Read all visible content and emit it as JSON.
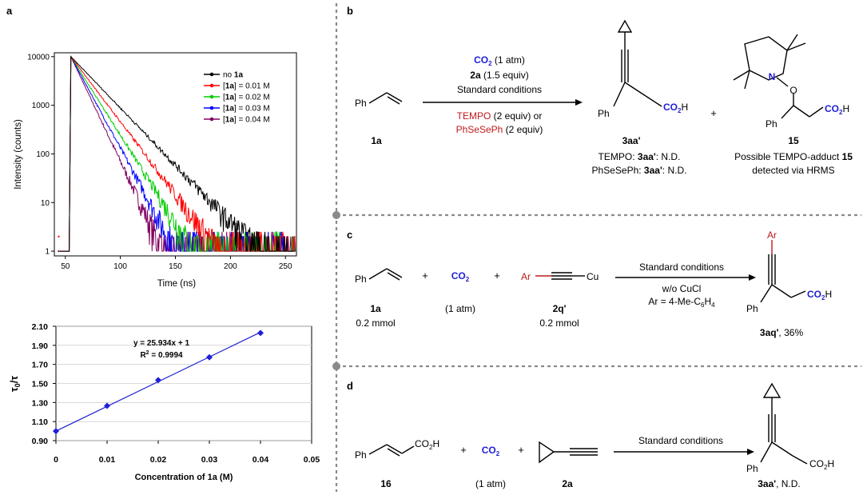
{
  "panels": {
    "a": "a",
    "b": "b",
    "c": "c",
    "d": "d"
  },
  "colors": {
    "blue": "#1f1fd6",
    "red": "#c0181c",
    "dash": "#8a8a8a"
  },
  "chart_data": [
    {
      "type": "line",
      "xlabel": "Time (ns)",
      "ylabel": "Intensity (counts)",
      "yscale": "log",
      "xlim": [
        40,
        260
      ],
      "ylim": [
        0.8,
        12000
      ],
      "xticks": [
        "50",
        "100",
        "150",
        "200",
        "250"
      ],
      "yticks": [
        "1",
        "10",
        "100",
        "1000",
        "10000"
      ],
      "legend_position": "top-right",
      "series": [
        {
          "name": "no 1a",
          "label_prefix": "no ",
          "label_bold": "1a",
          "label_suffix": "",
          "color": "#000000",
          "tau": 18.5
        },
        {
          "name": "[1a] = 0.01 M",
          "label_prefix": "[",
          "label_bold": "1a",
          "label_suffix": "] = 0.01 M",
          "color": "#ff0000",
          "tau": 14.6
        },
        {
          "name": "[1a] = 0.02 M",
          "label_prefix": "[",
          "label_bold": "1a",
          "label_suffix": "] = 0.02 M",
          "color": "#00cc00",
          "tau": 12.1
        },
        {
          "name": "[1a] = 0.03 M",
          "label_prefix": "[",
          "label_bold": "1a",
          "label_suffix": "] = 0.03 M",
          "color": "#0000ff",
          "tau": 10.4
        },
        {
          "name": "[1a] = 0.04 M",
          "label_prefix": "[",
          "label_bold": "1a",
          "label_suffix": "] = 0.04 M",
          "color": "#800060",
          "tau": 9.1
        }
      ],
      "peak_x": 55,
      "peak_y": 10000
    },
    {
      "type": "scatter",
      "xlabel": "Concentration of 1a (M)",
      "ylabel_main": "τ",
      "ylabel_sub": "0",
      "ylabel_rest": "/τ",
      "xlim": [
        0,
        0.05
      ],
      "ylim": [
        0.9,
        2.1
      ],
      "xticks": [
        "0",
        "0.01",
        "0.02",
        "0.03",
        "0.04",
        "0.05"
      ],
      "yticks": [
        "0.90",
        "1.10",
        "1.30",
        "1.50",
        "1.70",
        "1.90",
        "2.10"
      ],
      "equation": "y = 25.934x + 1",
      "r2_prefix": "R",
      "r2_sup": "2",
      "r2_suffix": " = 0.9994",
      "x": [
        0,
        0.01,
        0.02,
        0.03,
        0.04
      ],
      "y": [
        1.0,
        1.265,
        1.535,
        1.775,
        2.03
      ],
      "color": "#1f1fd6"
    }
  ],
  "b": {
    "reagent1_bold": "CO",
    "reagent1_sub": "2",
    "reagent1_rest": " (1 atm)",
    "reagent2_bold": "2a",
    "reagent2_rest": " (1.5 equiv)",
    "reagent3": "Standard conditions",
    "reagent4_red": "TEMPO",
    "reagent4_rest": "  (2 equiv) or",
    "reagent5_red": "PhSeSePh",
    "reagent5_rest": " (2 equiv)",
    "substrate_ph": "Ph",
    "substrate_label": "1a",
    "product1_ph": "Ph",
    "product1_co2": "CO",
    "product1_co2_sub": "2",
    "product1_co2_h": "H",
    "product1_label": "3aa'",
    "note1_prefix": "TEMPO: ",
    "note1_bold": "3aa'",
    "note1_suffix": ": N.D.",
    "note2_prefix": "PhSeSePh: ",
    "note2_bold": "3aa'",
    "note2_suffix": ": N.D.",
    "plus": "+",
    "product2_n": "N",
    "product2_o": "O",
    "product2_ph": "Ph",
    "product2_co2": "CO",
    "product2_co2_sub": "2",
    "product2_co2_h": "H",
    "product2_label": "15",
    "note3_prefix": "Possible TEMPO-adduct ",
    "note3_bold": "15",
    "note4": "detected via HRMS"
  },
  "c": {
    "ph": "Ph",
    "label_1a": "1a",
    "amount_1a": "0.2 mmol",
    "plus1": "+",
    "co2": "CO",
    "co2_sub": "2",
    "co2_amount": "(1 atm)",
    "plus2": "+",
    "ar": "Ar",
    "cu": "Cu",
    "label_2q": "2q'",
    "amount_2q": "0.2 mmol",
    "cond1": "Standard conditions",
    "cond2": "w/o CuCl",
    "cond3_prefix": "Ar = 4-Me-C",
    "cond3_sub1": "6",
    "cond3_mid": "H",
    "cond3_sub2": "4",
    "prod_ar": "Ar",
    "prod_ph": "Ph",
    "prod_co2": "CO",
    "prod_co2_sub": "2",
    "prod_co2_h": "H",
    "prod_label": "3aq'",
    "prod_yield": ", 36%"
  },
  "d": {
    "ph": "Ph",
    "co2h": "CO",
    "co2h_sub": "2",
    "co2h_h": "H",
    "label_16": "16",
    "plus1": "+",
    "co2": "CO",
    "co2_sub": "2",
    "co2_amount": "(1 atm)",
    "plus2": "+",
    "label_2a": "2a",
    "cond": "Standard conditions",
    "prod_ph": "Ph",
    "prod_co2": "CO",
    "prod_co2_sub": "2",
    "prod_co2_h": "H",
    "prod_label": "3aa'",
    "prod_result": ", N.D."
  }
}
